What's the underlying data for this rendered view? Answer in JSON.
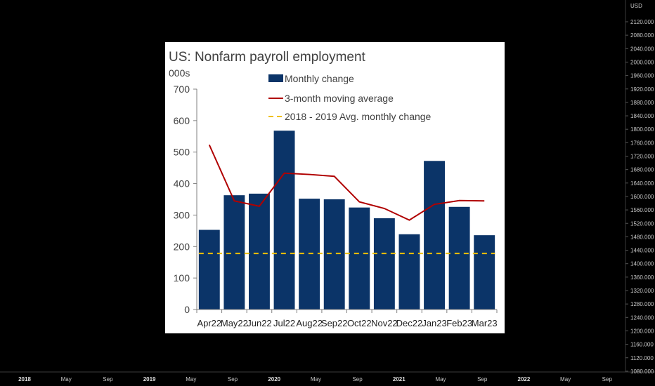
{
  "screen": {
    "currency": "USD",
    "price_axis_labels": [
      "2120.000",
      "2080.000",
      "2040.000",
      "2000.000",
      "1960.000",
      "1920.000",
      "1880.000",
      "1840.000",
      "1800.000",
      "1760.000",
      "1720.000",
      "1680.000",
      "1640.000",
      "1600.000",
      "1560.000",
      "1520.000",
      "1480.000",
      "1440.000",
      "1400.000",
      "1360.000",
      "1320.000",
      "1280.000",
      "1240.000",
      "1200.000",
      "1160.000",
      "1120.000",
      "1080.000"
    ],
    "time_axis_labels": [
      {
        "text": "2018",
        "major": true
      },
      {
        "text": "May",
        "major": false
      },
      {
        "text": "Sep",
        "major": false
      },
      {
        "text": "2019",
        "major": true
      },
      {
        "text": "May",
        "major": false
      },
      {
        "text": "Sep",
        "major": false
      },
      {
        "text": "2020",
        "major": true
      },
      {
        "text": "May",
        "major": false
      },
      {
        "text": "Sep",
        "major": false
      },
      {
        "text": "2021",
        "major": true
      },
      {
        "text": "May",
        "major": false
      },
      {
        "text": "Sep",
        "major": false
      },
      {
        "text": "2022",
        "major": true
      },
      {
        "text": "May",
        "major": false
      },
      {
        "text": "Sep",
        "major": false
      }
    ],
    "colors": {
      "background": "#000000",
      "axis_text": "#c8c8c8",
      "panel_background": "#ffffff",
      "bar": "#0b3468",
      "moving_average": "#b00000",
      "baseline": "#f0c000"
    }
  },
  "chart_data": {
    "type": "bar",
    "title": "US: Nonfarm payroll employment",
    "ylabel": "000s",
    "ylim": [
      0,
      700
    ],
    "yticks": [
      0,
      100,
      200,
      300,
      400,
      500,
      600,
      700
    ],
    "categories": [
      "Apr22",
      "May22",
      "Jun22",
      "Jul22",
      "Aug22",
      "Sep22",
      "Oct22",
      "Nov22",
      "Dec22",
      "Jan23",
      "Feb23",
      "Mar23"
    ],
    "series": [
      {
        "name": "Monthly change",
        "type": "bar",
        "values": [
          253,
          363,
          368,
          568,
          352,
          350,
          324,
          290,
          239,
          472,
          326,
          236
        ]
      },
      {
        "name": "3-month moving average",
        "type": "line",
        "values": [
          523,
          345,
          328,
          433,
          429,
          423,
          342,
          321,
          284,
          334,
          346,
          345
        ]
      },
      {
        "name": "2018 - 2019 Avg. monthly change",
        "type": "dashed-line",
        "values": [
          178,
          178,
          178,
          178,
          178,
          178,
          178,
          178,
          178,
          178,
          178,
          178
        ]
      }
    ],
    "legend_position": "top-center",
    "grid": false
  }
}
